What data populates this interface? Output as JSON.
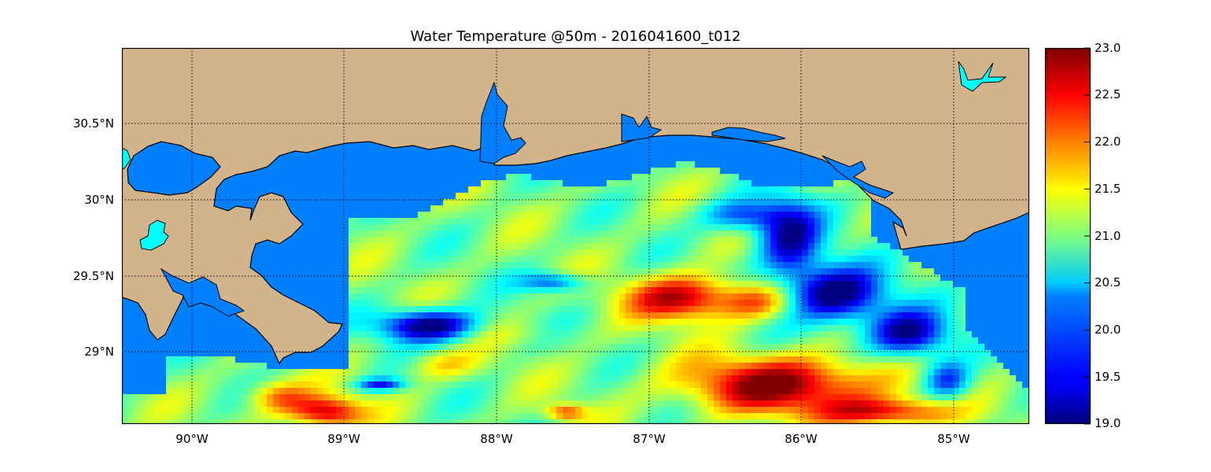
{
  "title": "Water Temperature @50m - 2016041600_t012",
  "map": {
    "lat_ticks": [
      "30.5°N",
      "30°N",
      "29.5°N",
      "29°N"
    ],
    "lon_ticks": [
      "90°W",
      "89°W",
      "88°W",
      "87°W",
      "86°W",
      "85°W"
    ],
    "lat_range": [
      28.55,
      31.0
    ],
    "lon_range": [
      -90.47,
      -84.5
    ],
    "colors": {
      "land": "#d2b48c",
      "water": "#0080ff",
      "lake": "#00ffff"
    }
  },
  "colorbar": {
    "min": 19.0,
    "max": 23.0,
    "tick_labels": [
      "23.0",
      "22.5",
      "22.0",
      "21.5",
      "21.0",
      "20.5",
      "20.0",
      "19.5",
      "19.0"
    ],
    "colormap": "jet"
  }
}
